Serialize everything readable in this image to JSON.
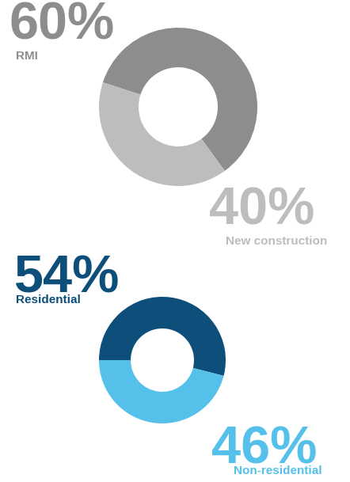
{
  "chart_data": [
    {
      "type": "pie",
      "categories": [
        "RMI",
        "New construction"
      ],
      "values": [
        60,
        40
      ],
      "value_labels": [
        "60%",
        "40%"
      ],
      "colors": [
        "#8c8d8f",
        "#bcbdbf"
      ],
      "data_labels": true
    },
    {
      "type": "pie",
      "categories": [
        "Residential",
        "Non-residential"
      ],
      "values": [
        54,
        46
      ],
      "value_labels": [
        "54%",
        "46%"
      ],
      "colors": [
        "#0d4f7a",
        "#55c1ea"
      ],
      "data_labels": true
    }
  ]
}
